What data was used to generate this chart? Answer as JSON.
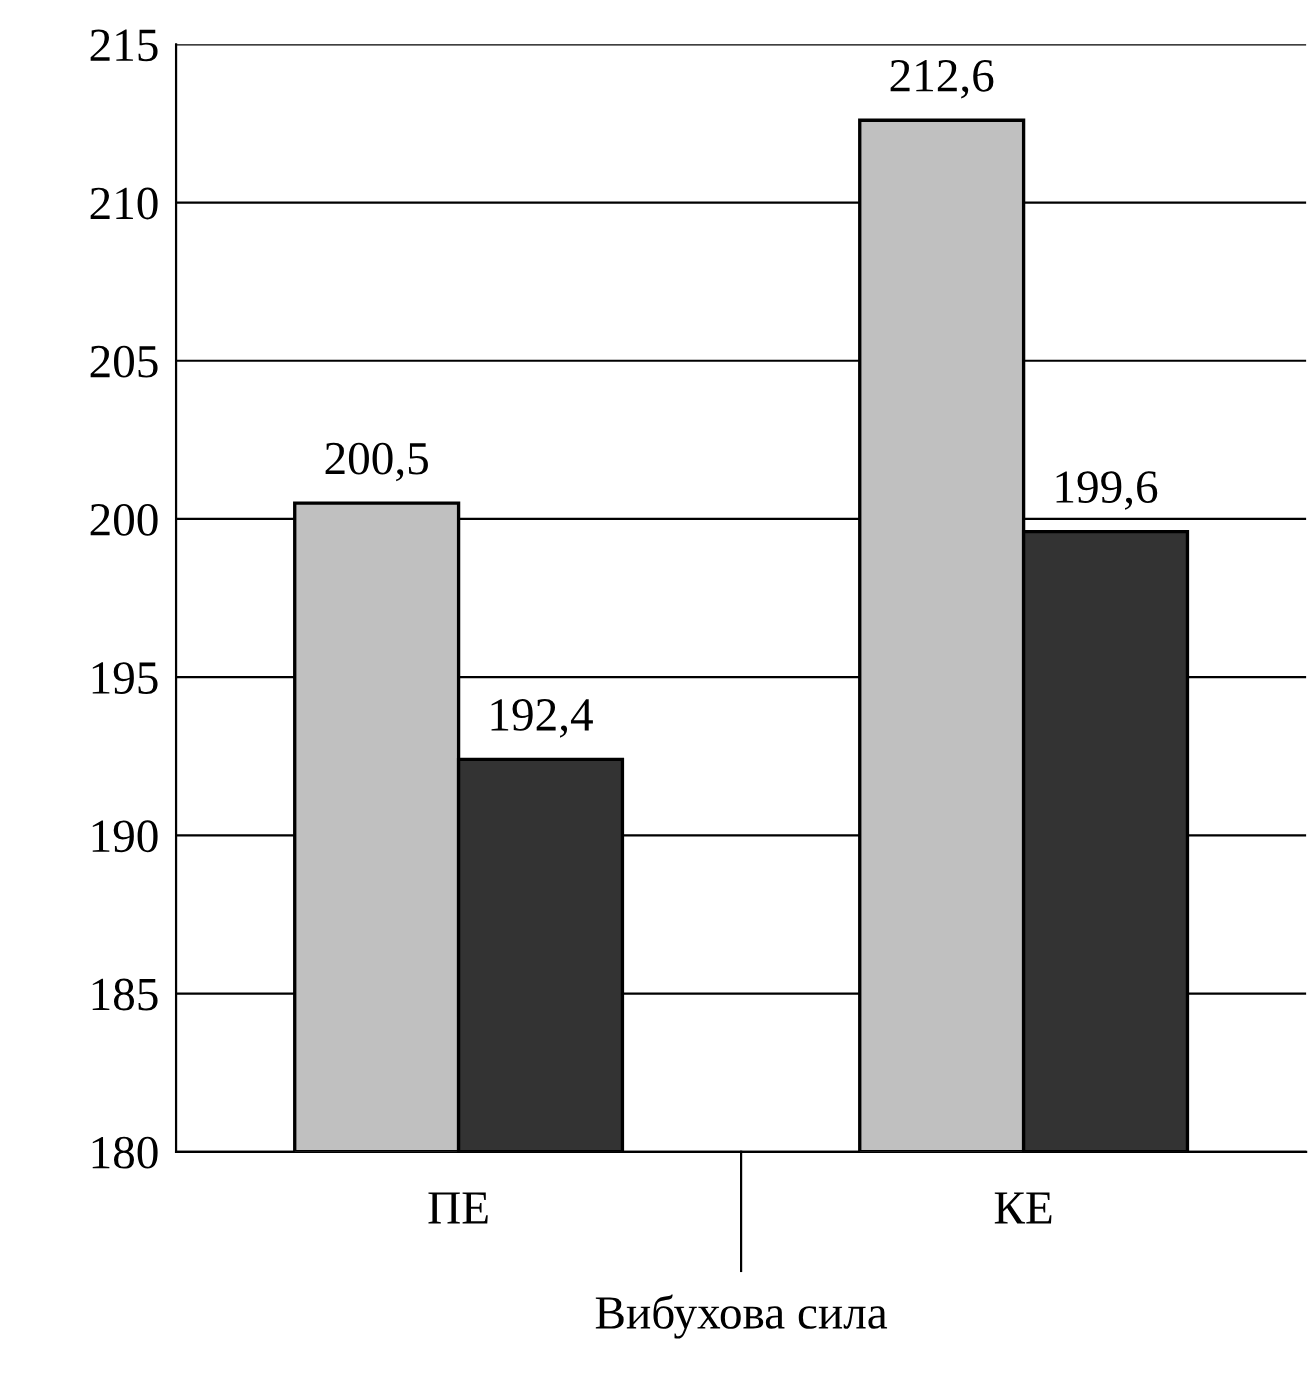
{
  "chart_data": {
    "type": "bar",
    "xlabel": "Вибухова сила",
    "categories": [
      "ПЕ",
      "КЕ"
    ],
    "series": [
      {
        "color": "#c0c0c0",
        "values": [
          200.5,
          212.6
        ],
        "value_labels": [
          "200,5",
          "212,6"
        ]
      },
      {
        "color": "#333333",
        "values": [
          192.4,
          199.6
        ],
        "value_labels": [
          "192,4",
          "199,6"
        ]
      }
    ],
    "ylim": [
      180,
      215
    ],
    "yticks": [
      180,
      185,
      190,
      195,
      200,
      205,
      210,
      215
    ],
    "grid": "y",
    "legend": false
  }
}
